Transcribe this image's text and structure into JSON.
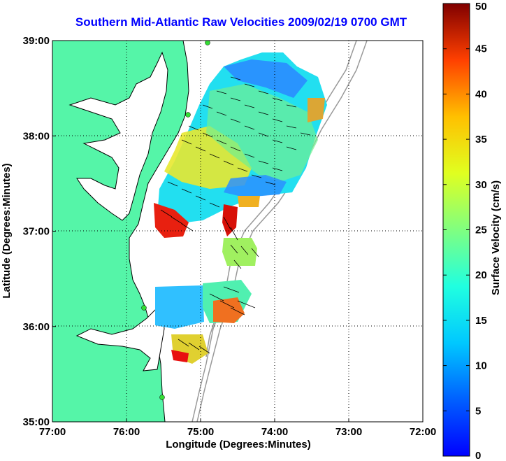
{
  "chart_data": {
    "type": "heatmap",
    "title": "Southern Mid-Atlantic Raw Velocities 2009/02/19 0700 GMT",
    "xlabel": "Longitude (Degrees:Minutes)",
    "ylabel": "Latitude (Degrees:Minutes)",
    "x_ticks": [
      "77:00",
      "76:00",
      "75:00",
      "74:00",
      "73:00",
      "72:00"
    ],
    "y_ticks": [
      "39:00",
      "38:00",
      "37:00",
      "36:00",
      "35:00"
    ],
    "xlim": [
      -77,
      -72
    ],
    "ylim": [
      35,
      39
    ],
    "grid": true,
    "colorbar": {
      "label": "Surface Velocity (cm/s)",
      "ticks": [
        "50",
        "45",
        "40",
        "35",
        "30",
        "25",
        "20",
        "15",
        "10",
        "5",
        "0"
      ],
      "range": [
        0,
        50
      ],
      "colormap": "jet"
    },
    "colors": {
      "title": "#0000ff",
      "land": "#55f5a8",
      "bathymetry": "#999999"
    }
  }
}
